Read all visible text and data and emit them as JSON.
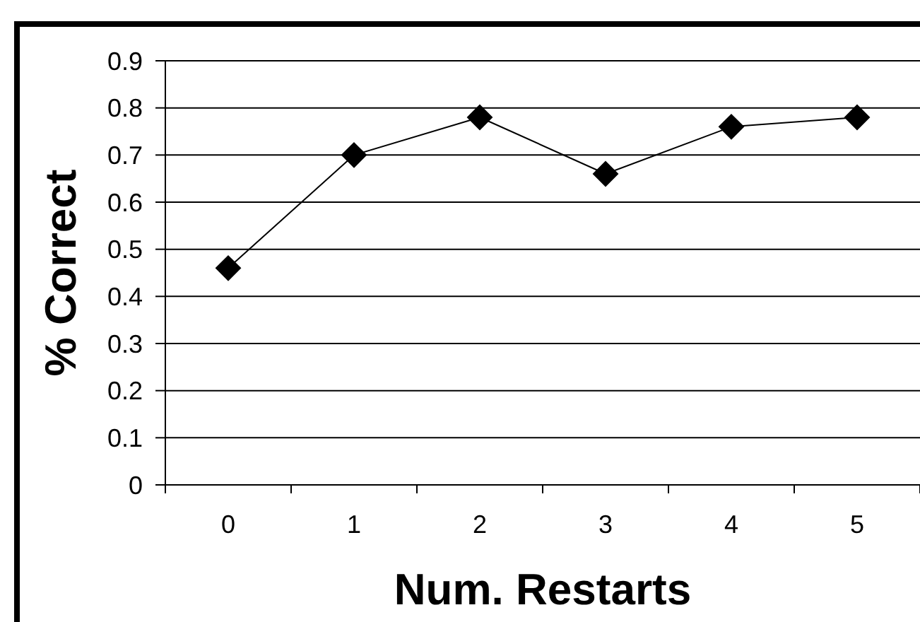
{
  "chart_data": {
    "type": "line",
    "xlabel": "Num. Restarts",
    "ylabel": "% Correct",
    "categories": [
      "0",
      "1",
      "2",
      "3",
      "4",
      "5"
    ],
    "series": [
      {
        "color": "#000000",
        "values": [
          0.46,
          0.7,
          0.78,
          0.66,
          0.76,
          0.78
        ]
      }
    ],
    "ylim": [
      0,
      0.9
    ],
    "yticks": [
      0,
      0.1,
      0.2,
      0.3,
      0.4,
      0.5,
      0.6,
      0.7,
      0.8,
      0.9
    ],
    "grid": "y",
    "marker": "diamond"
  }
}
